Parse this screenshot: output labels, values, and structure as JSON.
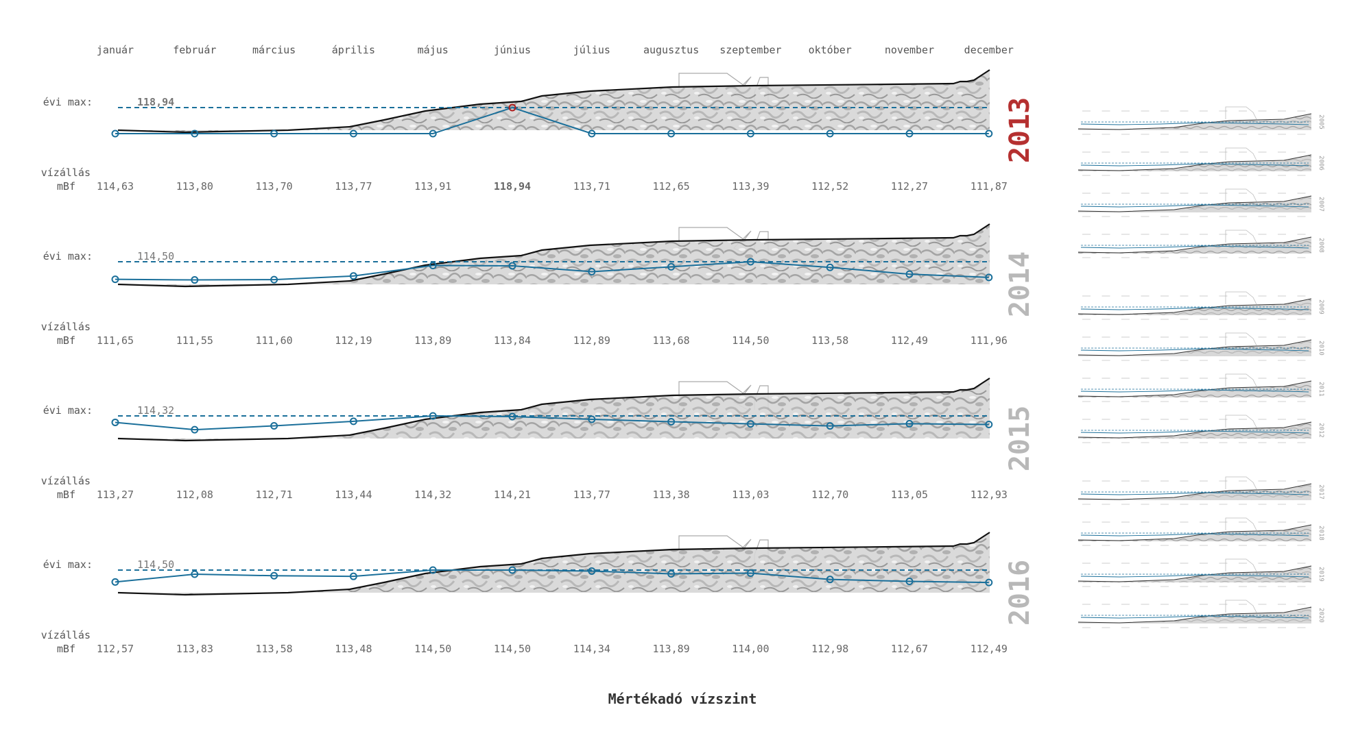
{
  "footer_title": "Mértékadó vízszint",
  "labels": {
    "annual_max": "évi max:",
    "water_level": "vízállás",
    "unit": "mBf"
  },
  "colors": {
    "series": "#1a6f9a",
    "highlight": "#b01e1e",
    "terrain_line": "#111111",
    "building": "#aaaaaa",
    "year_active": "#b53030",
    "year_muted": "#b8b8b8"
  },
  "chart_data": [
    {
      "type": "line",
      "year": "2013",
      "categories": [
        "január",
        "február",
        "március",
        "április",
        "május",
        "június",
        "július",
        "augusztus",
        "szeptember",
        "október",
        "november",
        "december"
      ],
      "values": [
        114.63,
        113.8,
        113.7,
        113.77,
        113.91,
        118.94,
        113.71,
        112.65,
        113.39,
        112.52,
        112.27,
        111.87
      ],
      "value_labels": [
        "114,63",
        "113,80",
        "113,70",
        "113,77",
        "113,91",
        "118,94",
        "113,71",
        "112,65",
        "113,39",
        "112,52",
        "112,27",
        "111,87"
      ],
      "annual_max": 118.94,
      "annual_max_label": "118,94",
      "highlight_index": 5,
      "highlight_max": true,
      "active": true
    },
    {
      "type": "line",
      "year": "2014",
      "categories": [
        "január",
        "február",
        "március",
        "április",
        "május",
        "június",
        "július",
        "augusztus",
        "szeptember",
        "október",
        "november",
        "december"
      ],
      "values": [
        111.65,
        111.55,
        111.6,
        112.19,
        113.89,
        113.84,
        112.89,
        113.68,
        114.5,
        113.58,
        112.49,
        111.96
      ],
      "value_labels": [
        "111,65",
        "111,55",
        "111,60",
        "112,19",
        "113,89",
        "113,84",
        "112,89",
        "113,68",
        "114,50",
        "113,58",
        "112,49",
        "111,96"
      ],
      "annual_max": 114.5,
      "annual_max_label": "114,50",
      "highlight_index": null,
      "highlight_max": false,
      "active": false
    },
    {
      "type": "line",
      "year": "2015",
      "categories": [
        "január",
        "február",
        "március",
        "április",
        "május",
        "június",
        "július",
        "augusztus",
        "szeptember",
        "október",
        "november",
        "december"
      ],
      "values": [
        113.27,
        112.08,
        112.71,
        113.44,
        114.32,
        114.21,
        113.77,
        113.38,
        113.03,
        112.7,
        113.05,
        112.93
      ],
      "value_labels": [
        "113,27",
        "112,08",
        "112,71",
        "113,44",
        "114,32",
        "114,21",
        "113,77",
        "113,38",
        "113,03",
        "112,70",
        "113,05",
        "112,93"
      ],
      "annual_max": 114.32,
      "annual_max_label": "114,32",
      "highlight_index": null,
      "highlight_max": false,
      "active": false
    },
    {
      "type": "line",
      "year": "2016",
      "categories": [
        "január",
        "február",
        "március",
        "április",
        "május",
        "június",
        "július",
        "augusztus",
        "szeptember",
        "október",
        "november",
        "december"
      ],
      "values": [
        112.57,
        113.83,
        113.58,
        113.48,
        114.5,
        114.5,
        114.34,
        113.89,
        114.0,
        112.98,
        112.67,
        112.49
      ],
      "value_labels": [
        "112,57",
        "113,83",
        "113,58",
        "113,48",
        "114,50",
        "114,50",
        "114,34",
        "113,89",
        "114,00",
        "112,98",
        "112,67",
        "112,49"
      ],
      "annual_max": 114.5,
      "annual_max_label": "114,50",
      "highlight_index": null,
      "highlight_max": false,
      "active": false
    }
  ],
  "mini_panels": [
    {
      "year": "2005"
    },
    {
      "year": "2006"
    },
    {
      "year": "2007"
    },
    {
      "year": "2008"
    },
    {
      "year": "2009"
    },
    {
      "year": "2010"
    },
    {
      "year": "2011"
    },
    {
      "year": "2012"
    },
    {
      "year": "2017"
    },
    {
      "year": "2018"
    },
    {
      "year": "2019"
    },
    {
      "year": "2020"
    }
  ]
}
